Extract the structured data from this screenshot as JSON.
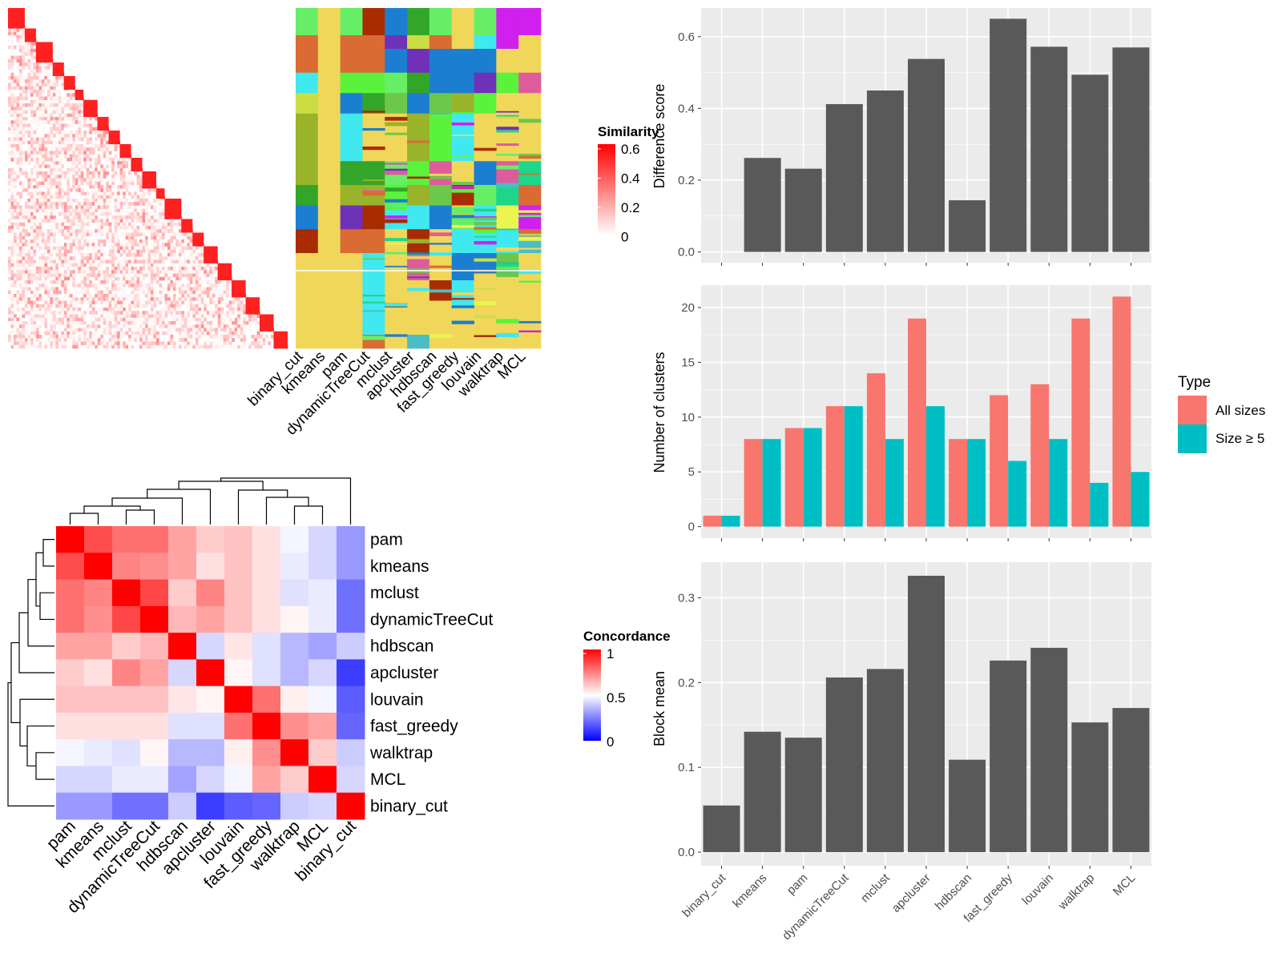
{
  "chart_data": [
    {
      "type": "heatmap",
      "panel": "similarity_with_clusterings",
      "legend": {
        "title": "Similarity",
        "ticks": [
          "0.6",
          "0.4",
          "0.2",
          "0"
        ],
        "range": [
          0,
          0.6
        ]
      },
      "column_labels": [
        "binary_cut",
        "kmeans",
        "pam",
        "dynamicTreeCut",
        "mclust",
        "apcluster",
        "hdbscan",
        "fast_greedy",
        "louvain",
        "walktrap",
        "MCL"
      ]
    },
    {
      "type": "heatmap",
      "panel": "concordance",
      "legend": {
        "title": "Concordance",
        "ticks": [
          "1",
          "0.5",
          "0"
        ],
        "range": [
          0,
          1
        ]
      },
      "row_labels": [
        "pam",
        "kmeans",
        "mclust",
        "dynamicTreeCut",
        "hdbscan",
        "apcluster",
        "louvain",
        "fast_greedy",
        "walktrap",
        "MCL",
        "binary_cut"
      ],
      "column_labels": [
        "pam",
        "kmeans",
        "mclust",
        "dynamicTreeCut",
        "hdbscan",
        "apcluster",
        "louvain",
        "fast_greedy",
        "walktrap",
        "MCL",
        "binary_cut"
      ],
      "values": [
        [
          1.0,
          0.85,
          0.78,
          0.78,
          0.68,
          0.6,
          0.62,
          0.56,
          0.48,
          0.42,
          0.3
        ],
        [
          0.85,
          1.0,
          0.74,
          0.72,
          0.68,
          0.56,
          0.62,
          0.56,
          0.46,
          0.42,
          0.3
        ],
        [
          0.78,
          0.74,
          1.0,
          0.86,
          0.6,
          0.74,
          0.62,
          0.56,
          0.44,
          0.46,
          0.22
        ],
        [
          0.78,
          0.72,
          0.86,
          1.0,
          0.64,
          0.68,
          0.62,
          0.56,
          0.52,
          0.46,
          0.22
        ],
        [
          0.68,
          0.68,
          0.6,
          0.64,
          1.0,
          0.42,
          0.55,
          0.44,
          0.36,
          0.32,
          0.4
        ],
        [
          0.6,
          0.56,
          0.74,
          0.68,
          0.42,
          1.0,
          0.52,
          0.44,
          0.36,
          0.42,
          0.12
        ],
        [
          0.62,
          0.62,
          0.62,
          0.62,
          0.55,
          0.52,
          1.0,
          0.78,
          0.53,
          0.48,
          0.18
        ],
        [
          0.56,
          0.56,
          0.56,
          0.56,
          0.44,
          0.44,
          0.78,
          1.0,
          0.72,
          0.68,
          0.2
        ],
        [
          0.48,
          0.46,
          0.44,
          0.52,
          0.36,
          0.36,
          0.53,
          0.72,
          1.0,
          0.6,
          0.4
        ],
        [
          0.42,
          0.42,
          0.46,
          0.46,
          0.32,
          0.42,
          0.48,
          0.68,
          0.6,
          1.0,
          0.42
        ],
        [
          0.3,
          0.3,
          0.22,
          0.22,
          0.4,
          0.12,
          0.18,
          0.2,
          0.4,
          0.42,
          1.0
        ]
      ]
    },
    {
      "type": "bar",
      "panel": "difference_score",
      "ylabel": "Difference score",
      "categories": [
        "binary_cut",
        "kmeans",
        "pam",
        "dynamicTreeCut",
        "mclust",
        "apcluster",
        "hdbscan",
        "fast_greedy",
        "louvain",
        "walktrap",
        "MCL"
      ],
      "values": [
        0.0,
        0.262,
        0.232,
        0.412,
        0.45,
        0.538,
        0.144,
        0.65,
        0.572,
        0.494,
        0.57
      ],
      "ylim": [
        -0.03,
        0.68
      ],
      "yticks": [
        "0.0",
        "0.2",
        "0.4",
        "0.6"
      ],
      "grid": true
    },
    {
      "type": "bar",
      "panel": "number_of_clusters",
      "ylabel": "Number of clusters",
      "categories": [
        "binary_cut",
        "kmeans",
        "pam",
        "dynamicTreeCut",
        "mclust",
        "apcluster",
        "hdbscan",
        "fast_greedy",
        "louvain",
        "walktrap",
        "MCL"
      ],
      "series": [
        {
          "name": "All sizes",
          "values": [
            1,
            8,
            9,
            11,
            14,
            19,
            8,
            12,
            13,
            19,
            21
          ]
        },
        {
          "name": "Size ≥ 5",
          "values": [
            1,
            8,
            9,
            11,
            8,
            11,
            8,
            6,
            8,
            4,
            5
          ]
        }
      ],
      "ylim": [
        -1.05,
        22.05
      ],
      "yticks": [
        "0",
        "5",
        "10",
        "15",
        "20"
      ],
      "grid": true,
      "legend": {
        "title": "Type",
        "position": "right"
      }
    },
    {
      "type": "bar",
      "panel": "block_mean",
      "ylabel": "Block mean",
      "categories": [
        "binary_cut",
        "kmeans",
        "pam",
        "dynamicTreeCut",
        "mclust",
        "apcluster",
        "hdbscan",
        "fast_greedy",
        "louvain",
        "walktrap",
        "MCL"
      ],
      "values": [
        0.055,
        0.142,
        0.135,
        0.206,
        0.216,
        0.326,
        0.109,
        0.226,
        0.241,
        0.153,
        0.17
      ],
      "ylim": [
        -0.016,
        0.342
      ],
      "yticks": [
        "0.0",
        "0.1",
        "0.2",
        "0.3"
      ],
      "grid": true
    }
  ],
  "colors": {
    "bar_dark": "#595959",
    "panel_bg": "#ebebeb",
    "grid": "#ffffff",
    "all_sizes": "#f8766d",
    "size_ge_5": "#00bfc4",
    "heat_high": "#ff0000",
    "heat_mid": "#ffffff",
    "heat_low": "#0000ff",
    "cluster_palette": [
      "#f0d75a",
      "#66ee66",
      "#a82c00",
      "#1c7ed1",
      "#33a62a",
      "#ccdd44",
      "#d11fef",
      "#6f31b8",
      "#d96b33",
      "#40e8f0",
      "#5bf23c",
      "#4abdc5",
      "#99b32a",
      "#de5c9c",
      "#1ed68a",
      "#6bc84a",
      "#eaf64f"
    ]
  }
}
